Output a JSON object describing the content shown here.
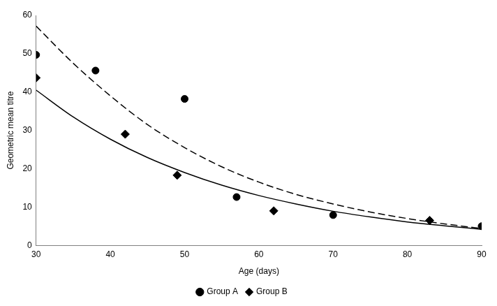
{
  "chart_data": {
    "type": "scatter",
    "x_label": "Age (days)",
    "y_label": "Geometric mean titre",
    "xlim": [
      30,
      90
    ],
    "ylim": [
      0,
      60
    ],
    "xticks": [
      30,
      40,
      50,
      60,
      70,
      80,
      90
    ],
    "yticks": [
      0,
      10,
      20,
      30,
      40,
      50,
      60
    ],
    "grid": false,
    "legend": "bottom",
    "series": [
      {
        "name": "Group A",
        "type": "scatter",
        "marker": "circle",
        "color": "#000000",
        "x": [
          30,
          38,
          50,
          57,
          70,
          90
        ],
        "values": [
          49.7,
          45.6,
          38.2,
          12.6,
          7.9,
          5.0
        ]
      },
      {
        "name": "Group B",
        "type": "scatter",
        "marker": "diamond",
        "color": "#000000",
        "x": [
          30,
          42,
          49,
          62,
          83
        ],
        "values": [
          43.7,
          29.0,
          18.3,
          9.0,
          6.5
        ]
      },
      {
        "type": "line",
        "line_style": "dashed",
        "color": "#000000",
        "x": [
          30,
          35,
          40,
          45,
          50,
          55,
          60,
          65,
          70,
          75,
          80,
          85,
          90
        ],
        "values": [
          57.2,
          47.5,
          39.0,
          31.5,
          25.5,
          20.5,
          16.5,
          13.3,
          10.8,
          8.7,
          7.0,
          5.6,
          4.4
        ]
      },
      {
        "type": "line",
        "line_style": "solid",
        "color": "#000000",
        "x": [
          30,
          35,
          40,
          45,
          50,
          55,
          60,
          65,
          70,
          75,
          80,
          85,
          90
        ],
        "values": [
          40.5,
          33.5,
          27.7,
          22.9,
          19.0,
          15.7,
          13.0,
          10.8,
          8.9,
          7.4,
          6.1,
          5.1,
          4.2
        ]
      }
    ]
  }
}
